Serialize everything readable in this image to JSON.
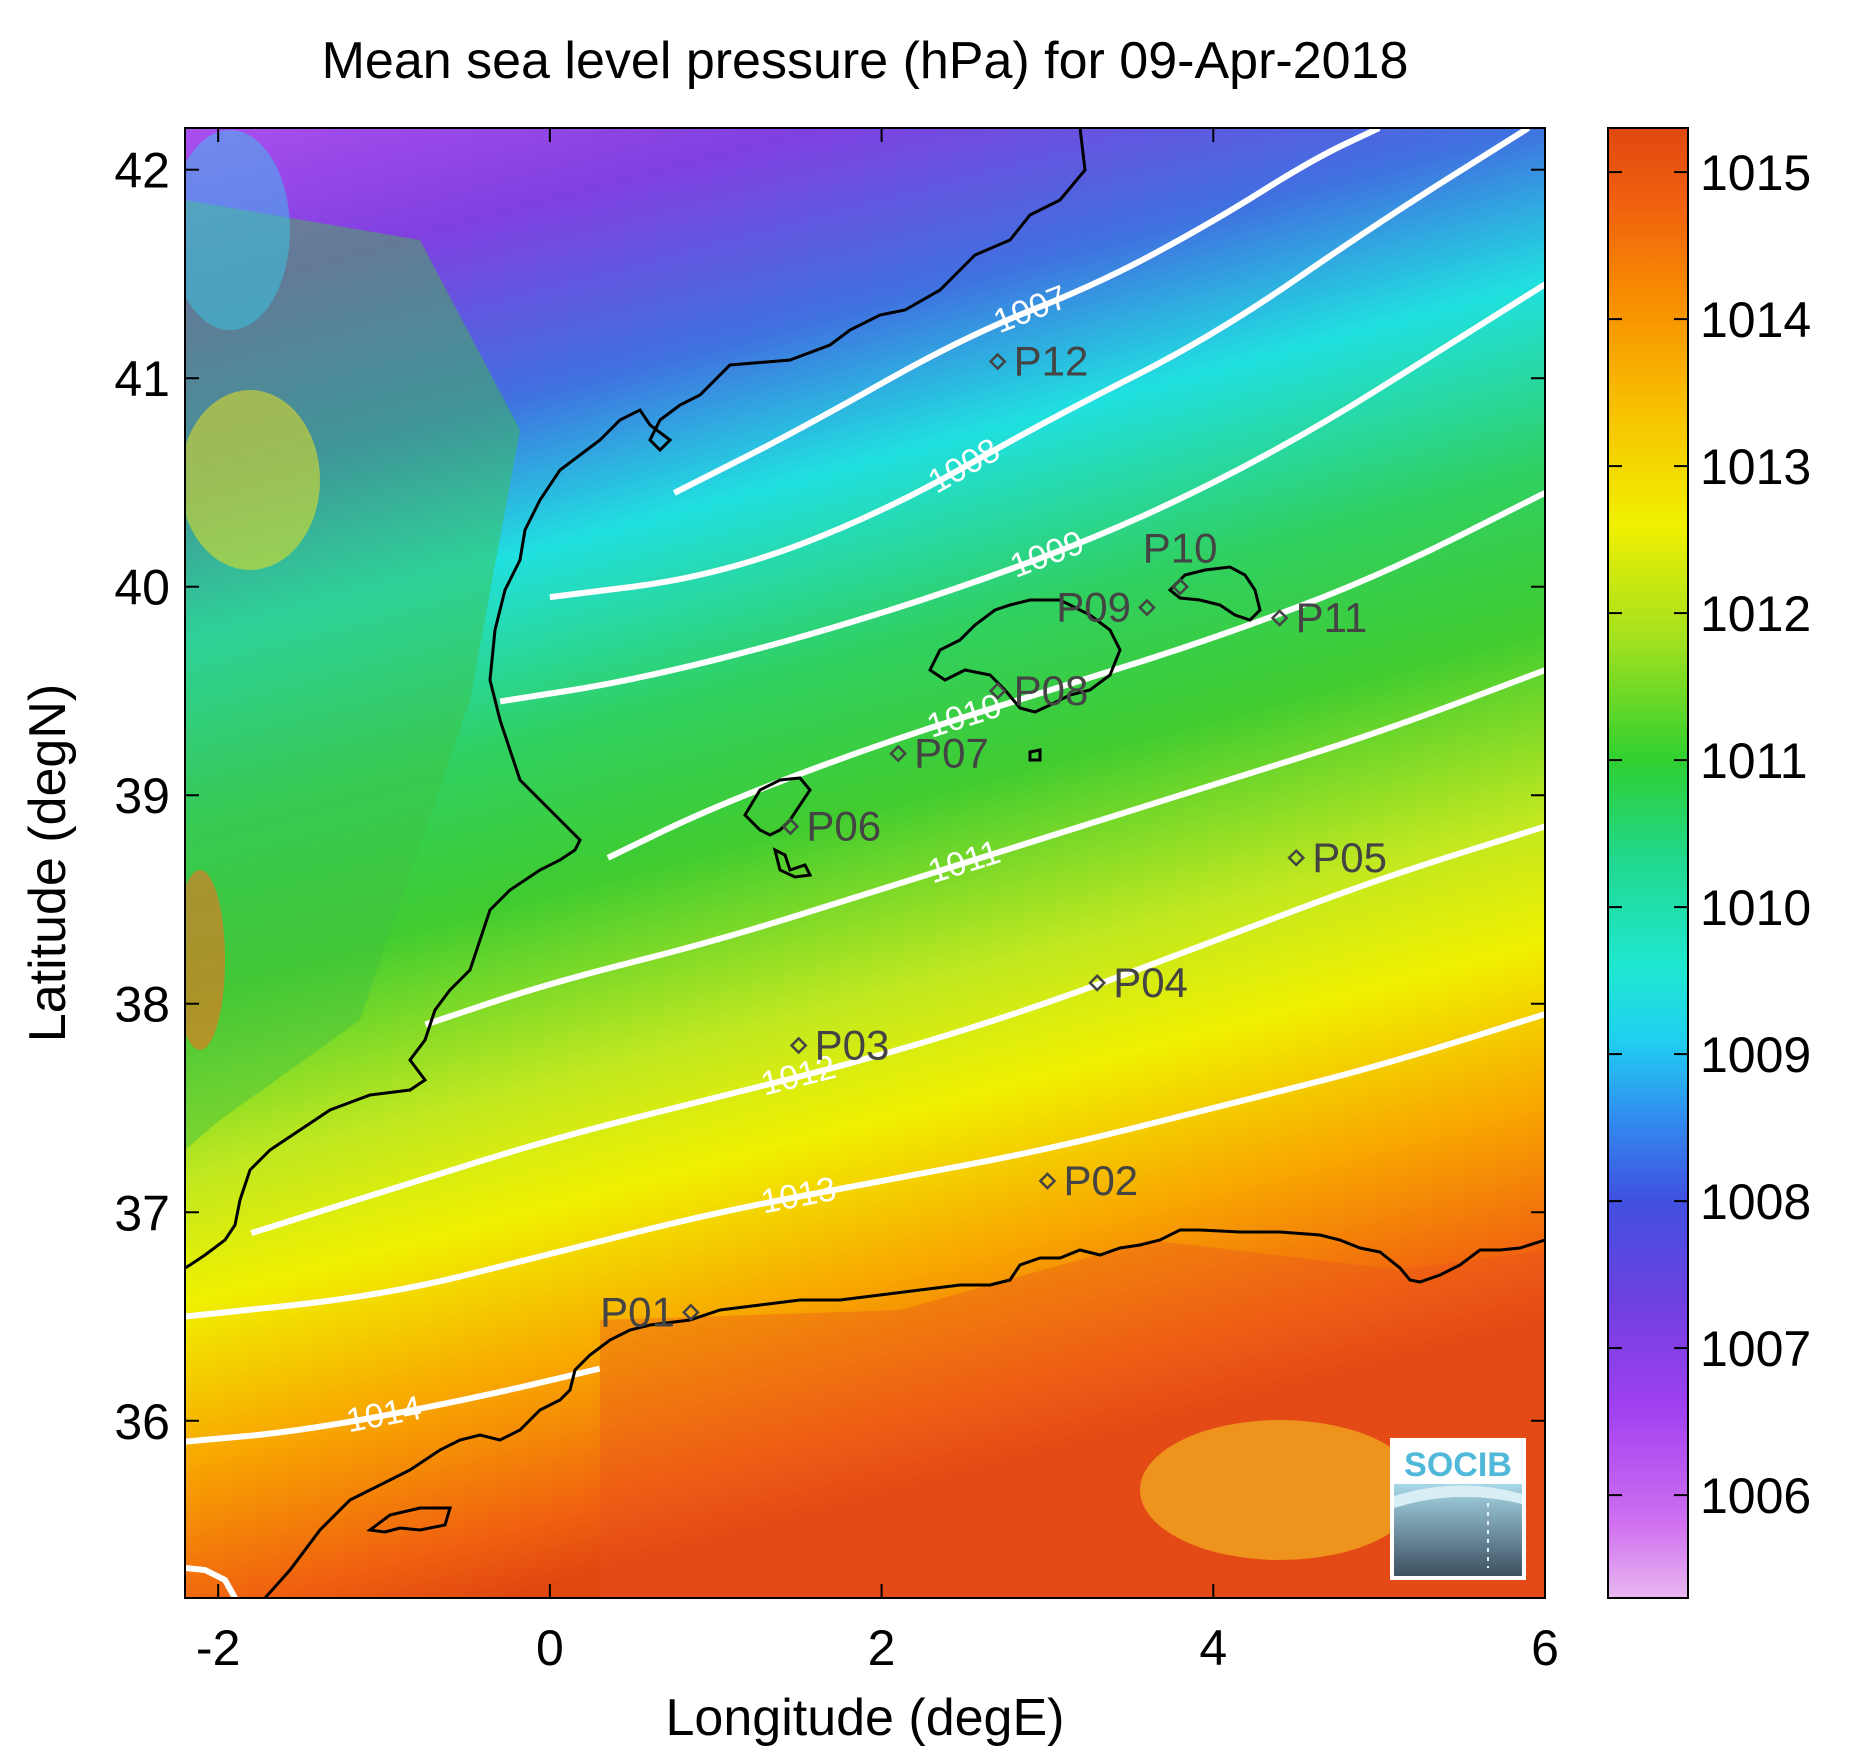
{
  "title": "Mean sea level pressure (hPa) for 09-Apr-2018",
  "xlabel": "Longitude (degE)",
  "ylabel": "Latitude (degN)",
  "logo": "SOCIB",
  "axes": {
    "xlim": [
      -2.2,
      6.0
    ],
    "ylim": [
      35.15,
      42.2
    ],
    "xticks": [
      -2,
      0,
      2,
      4,
      6
    ],
    "yticks": [
      36,
      37,
      38,
      39,
      40,
      41,
      42
    ],
    "colorbar_range": [
      1005.3,
      1015.3
    ],
    "colorbar_ticks": [
      1006,
      1007,
      1008,
      1009,
      1010,
      1011,
      1012,
      1013,
      1014,
      1015
    ]
  },
  "colormap": [
    "#e8b8f0",
    "#b050f0",
    "#8040e0",
    "#4060e0",
    "#30a0f0",
    "#20e8e8",
    "#20d8a0",
    "#30d030",
    "#a0e020",
    "#f0f000",
    "#f8c000",
    "#f89000",
    "#f06010",
    "#e04810"
  ],
  "colors": {
    "contour": "#ffffff",
    "coast": "#000000",
    "station": "#444444",
    "logo": "#50b8d8"
  },
  "chart_data": {
    "type": "map",
    "variable": "Mean sea level pressure",
    "units": "hPa",
    "date": "09-Apr-2018",
    "isobars": [
      {
        "level": 1007,
        "label": "1007",
        "points": [
          [
            0.75,
            40.45
          ],
          [
            1.5,
            40.75
          ],
          [
            2.5,
            41.2
          ],
          [
            3.3,
            41.45
          ],
          [
            4.0,
            41.75
          ],
          [
            4.6,
            42.05
          ],
          [
            5.0,
            42.2
          ]
        ]
      },
      {
        "level": 1008,
        "label": "1008",
        "points": [
          [
            0.0,
            39.95
          ],
          [
            1.0,
            40.05
          ],
          [
            2.0,
            40.35
          ],
          [
            3.0,
            40.8
          ],
          [
            4.0,
            41.2
          ],
          [
            5.0,
            41.75
          ],
          [
            5.9,
            42.2
          ]
        ]
      },
      {
        "level": 1009,
        "label": "1009",
        "points": [
          [
            -0.3,
            39.45
          ],
          [
            0.5,
            39.55
          ],
          [
            1.5,
            39.75
          ],
          [
            2.5,
            40.0
          ],
          [
            3.5,
            40.3
          ],
          [
            4.5,
            40.7
          ],
          [
            5.5,
            41.2
          ],
          [
            6.0,
            41.45
          ]
        ]
      },
      {
        "level": 1010,
        "label": "1010",
        "points": [
          [
            0.35,
            38.7
          ],
          [
            1.0,
            38.95
          ],
          [
            2.0,
            39.25
          ],
          [
            3.0,
            39.5
          ],
          [
            4.0,
            39.75
          ],
          [
            5.0,
            40.05
          ],
          [
            6.0,
            40.45
          ]
        ]
      },
      {
        "level": 1011,
        "label": "1011",
        "points": [
          [
            -0.75,
            37.9
          ],
          [
            0.0,
            38.1
          ],
          [
            1.0,
            38.3
          ],
          [
            2.0,
            38.55
          ],
          [
            3.0,
            38.8
          ],
          [
            4.0,
            39.05
          ],
          [
            5.0,
            39.3
          ],
          [
            6.0,
            39.6
          ]
        ]
      },
      {
        "level": 1012,
        "label": "1012",
        "points": [
          [
            -1.8,
            36.9
          ],
          [
            -1.0,
            37.1
          ],
          [
            0.0,
            37.35
          ],
          [
            1.0,
            37.55
          ],
          [
            2.0,
            37.75
          ],
          [
            3.0,
            38.0
          ],
          [
            4.0,
            38.3
          ],
          [
            5.0,
            38.6
          ],
          [
            6.0,
            38.85
          ]
        ]
      },
      {
        "level": 1013,
        "label": "1013",
        "points": [
          [
            -2.2,
            36.5
          ],
          [
            -1.0,
            36.6
          ],
          [
            0.0,
            36.8
          ],
          [
            1.0,
            37.0
          ],
          [
            2.0,
            37.15
          ],
          [
            3.0,
            37.3
          ],
          [
            4.0,
            37.5
          ],
          [
            5.0,
            37.7
          ],
          [
            6.0,
            37.95
          ]
        ]
      },
      {
        "level": 1014,
        "label": "1014",
        "points": [
          [
            -2.2,
            35.9
          ],
          [
            -1.5,
            35.95
          ],
          [
            -0.5,
            36.1
          ],
          [
            0.3,
            36.25
          ]
        ]
      }
    ],
    "stations": [
      {
        "id": "P01",
        "lon": 0.85,
        "lat": 36.52,
        "label_side": "left"
      },
      {
        "id": "P02",
        "lon": 3.0,
        "lat": 37.15,
        "label_side": "right"
      },
      {
        "id": "P03",
        "lon": 1.5,
        "lat": 37.8,
        "label_side": "right"
      },
      {
        "id": "P04",
        "lon": 3.3,
        "lat": 38.1,
        "label_side": "right"
      },
      {
        "id": "P05",
        "lon": 4.5,
        "lat": 38.7,
        "label_side": "right"
      },
      {
        "id": "P06",
        "lon": 1.45,
        "lat": 38.85,
        "label_side": "right"
      },
      {
        "id": "P07",
        "lon": 2.1,
        "lat": 39.2,
        "label_side": "right"
      },
      {
        "id": "P08",
        "lon": 2.7,
        "lat": 39.5,
        "label_side": "right"
      },
      {
        "id": "P09",
        "lon": 3.6,
        "lat": 39.9,
        "label_side": "left"
      },
      {
        "id": "P10",
        "lon": 3.8,
        "lat": 40.0,
        "label_side": "above"
      },
      {
        "id": "P11",
        "lon": 4.4,
        "lat": 39.85,
        "label_side": "right"
      },
      {
        "id": "P12",
        "lon": 2.7,
        "lat": 41.08,
        "label_side": "right"
      }
    ]
  }
}
